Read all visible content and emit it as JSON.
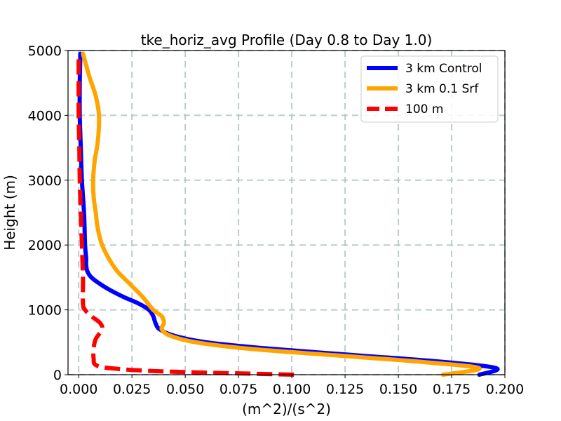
{
  "chart_data": {
    "type": "line",
    "title": "tke_horiz_avg Profile (Day 0.8 to Day 1.0)",
    "xlabel": "(m^2)/(s^2)",
    "ylabel": "Height (m)",
    "xlim": [
      -0.005,
      0.2
    ],
    "ylim": [
      0,
      5000
    ],
    "xticks": [
      "0.000",
      "0.025",
      "0.050",
      "0.075",
      "0.100",
      "0.125",
      "0.150",
      "0.175",
      "0.200"
    ],
    "yticks": [
      "0",
      "1000",
      "2000",
      "3000",
      "4000",
      "5000"
    ],
    "grid": true,
    "legend_position": "top-right",
    "series": [
      {
        "name": "3 km Control",
        "color": "#0000ff",
        "dash": "solid",
        "points": [
          [
            0.188,
            0
          ],
          [
            0.196,
            100
          ],
          [
            0.17,
            200
          ],
          [
            0.13,
            300
          ],
          [
            0.09,
            400
          ],
          [
            0.06,
            500
          ],
          [
            0.045,
            600
          ],
          [
            0.038,
            700
          ],
          [
            0.036,
            800
          ],
          [
            0.035,
            900
          ],
          [
            0.033,
            1000
          ],
          [
            0.028,
            1100
          ],
          [
            0.021,
            1200
          ],
          [
            0.015,
            1300
          ],
          [
            0.01,
            1400
          ],
          [
            0.006,
            1500
          ],
          [
            0.004,
            1600
          ],
          [
            0.0035,
            1700
          ],
          [
            0.0035,
            1800
          ],
          [
            0.003,
            2000
          ],
          [
            0.0025,
            2500
          ],
          [
            0.0015,
            3000
          ],
          [
            0.001,
            3500
          ],
          [
            0.0005,
            4000
          ],
          [
            0.0005,
            4500
          ],
          [
            0.0008,
            4950
          ]
        ]
      },
      {
        "name": "3 km 0.1 Srf",
        "color": "#ffa500",
        "dash": "solid",
        "points": [
          [
            0.171,
            0
          ],
          [
            0.188,
            100
          ],
          [
            0.16,
            200
          ],
          [
            0.12,
            300
          ],
          [
            0.08,
            400
          ],
          [
            0.055,
            500
          ],
          [
            0.043,
            600
          ],
          [
            0.039,
            700
          ],
          [
            0.04,
            800
          ],
          [
            0.039,
            900
          ],
          [
            0.035,
            1000
          ],
          [
            0.03,
            1200
          ],
          [
            0.024,
            1400
          ],
          [
            0.018,
            1600
          ],
          [
            0.014,
            1800
          ],
          [
            0.011,
            2000
          ],
          [
            0.009,
            2250
          ],
          [
            0.008,
            2500
          ],
          [
            0.007,
            2750
          ],
          [
            0.0068,
            3000
          ],
          [
            0.0075,
            3300
          ],
          [
            0.009,
            3600
          ],
          [
            0.0095,
            4000
          ],
          [
            0.008,
            4300
          ],
          [
            0.005,
            4600
          ],
          [
            0.002,
            4950
          ]
        ]
      },
      {
        "name": "100 m",
        "color": "#ff0000",
        "dash": "dashed",
        "points": [
          [
            0.101,
            0
          ],
          [
            0.04,
            50
          ],
          [
            0.015,
            100
          ],
          [
            0.008,
            150
          ],
          [
            0.007,
            250
          ],
          [
            0.007,
            400
          ],
          [
            0.008,
            550
          ],
          [
            0.011,
            700
          ],
          [
            0.01,
            800
          ],
          [
            0.006,
            900
          ],
          [
            0.003,
            1000
          ],
          [
            0.002,
            1100
          ],
          [
            0.002,
            1500
          ],
          [
            0.0015,
            2000
          ],
          [
            0.001,
            2500
          ],
          [
            0.0005,
            3000
          ],
          [
            0.0003,
            3500
          ],
          [
            0.0,
            4000
          ],
          [
            0.0,
            4500
          ],
          [
            0.0,
            4950
          ]
        ]
      }
    ]
  }
}
